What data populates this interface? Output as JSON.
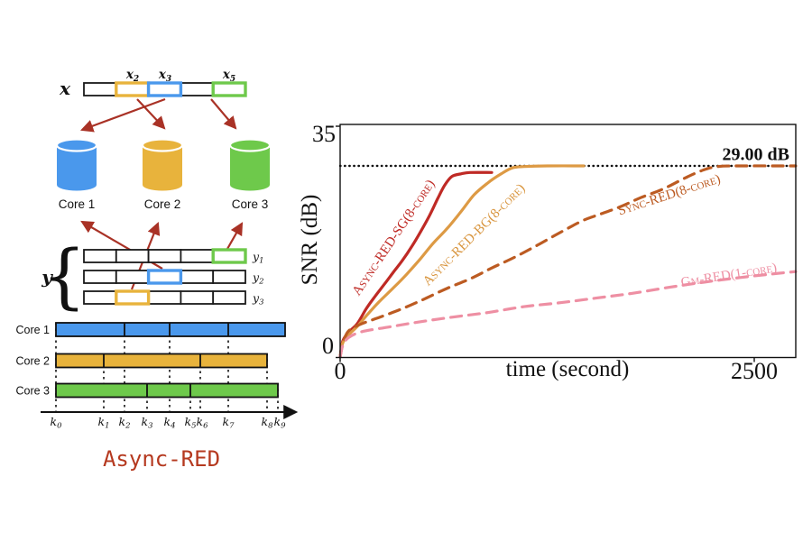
{
  "left": {
    "x_vector": {
      "label": "x",
      "cells": [
        {
          "base": "x",
          "sub": "2"
        },
        {
          "base": "x",
          "sub": "3"
        },
        {
          "base": "x",
          "sub": "5"
        }
      ]
    },
    "cores": [
      {
        "label": "Core 1",
        "color": "#4a98ec"
      },
      {
        "label": "Core 2",
        "color": "#e8b33c"
      },
      {
        "label": "Core 3",
        "color": "#6ec94b"
      }
    ],
    "y_vector": {
      "label": "y",
      "rows": [
        {
          "base": "y",
          "sub": "1"
        },
        {
          "base": "y",
          "sub": "2"
        },
        {
          "base": "y",
          "sub": "3"
        }
      ]
    },
    "timeline": {
      "rows": [
        "Core 1",
        "Core 2",
        "Core 3"
      ],
      "ticks": [
        {
          "base": "k",
          "sub": "0"
        },
        {
          "base": "k",
          "sub": "1"
        },
        {
          "base": "k",
          "sub": "2"
        },
        {
          "base": "k",
          "sub": "3"
        },
        {
          "base": "k",
          "sub": "4"
        },
        {
          "base": "k",
          "sub": "5"
        },
        {
          "base": "k",
          "sub": "6"
        },
        {
          "base": "k",
          "sub": "7"
        },
        {
          "base": "k",
          "sub": "8"
        },
        {
          "base": "k",
          "sub": "9"
        }
      ]
    },
    "caption": {
      "text": "Async-RED",
      "color": "#b5391f"
    },
    "arrow_color": "#a93226"
  },
  "chart": {
    "ylabel": "SNR (dB)",
    "xlabel": "time (second)",
    "ytick_top": "35",
    "ytick_bottom": "0",
    "xtick_left": "0",
    "xtick_right": "2500",
    "annotation": "29.00 dB"
  },
  "chart_data": {
    "type": "line",
    "title": "",
    "xlabel": "time (second)",
    "ylabel": "SNR (dB)",
    "xlim": [
      0,
      2750
    ],
    "ylim": [
      0,
      35.3
    ],
    "xticks": [
      0,
      2500
    ],
    "yticks": [
      0,
      35
    ],
    "grid": false,
    "legend_position": "inline-rotated-labels",
    "reference_line": {
      "text": "29.00 dB",
      "value": 29.0,
      "style": "dotted",
      "color": "#111111"
    },
    "series": [
      {
        "name": "Async-RED-SG(8-core)",
        "style": "solid",
        "color": "#bf2a25",
        "points": [
          [
            0,
            0.1
          ],
          [
            16,
            2.5
          ],
          [
            50,
            3.8
          ],
          [
            103,
            5.1
          ],
          [
            158,
            7.4
          ],
          [
            212,
            9.3
          ],
          [
            267,
            11.1
          ],
          [
            321,
            12.9
          ],
          [
            376,
            14.7
          ],
          [
            430,
            16.7
          ],
          [
            485,
            19.0
          ],
          [
            540,
            21.5
          ],
          [
            590,
            24.1
          ],
          [
            632,
            26.1
          ],
          [
            675,
            27.4
          ],
          [
            730,
            27.8
          ],
          [
            784,
            28.0
          ],
          [
            915,
            28.0
          ]
        ]
      },
      {
        "name": "Async-RED-BG(8-core)",
        "style": "solid",
        "color": "#dd9a44",
        "points": [
          [
            0,
            0.1
          ],
          [
            16,
            2.2
          ],
          [
            50,
            3.4
          ],
          [
            103,
            4.7
          ],
          [
            158,
            6.3
          ],
          [
            234,
            8.4
          ],
          [
            316,
            10.4
          ],
          [
            398,
            12.5
          ],
          [
            480,
            14.8
          ],
          [
            562,
            17.3
          ],
          [
            645,
            19.5
          ],
          [
            727,
            22.0
          ],
          [
            808,
            24.6
          ],
          [
            890,
            26.4
          ],
          [
            972,
            27.8
          ],
          [
            1040,
            28.7
          ],
          [
            1110,
            28.9
          ],
          [
            1250,
            29.0
          ],
          [
            1470,
            29.0
          ]
        ]
      },
      {
        "name": "Sync-RED(8-core)",
        "style": "dashed",
        "color": "#bc5b22",
        "points": [
          [
            0,
            0.1
          ],
          [
            16,
            2.0
          ],
          [
            50,
            4.0
          ],
          [
            130,
            5.1
          ],
          [
            240,
            6.1
          ],
          [
            376,
            7.4
          ],
          [
            512,
            8.9
          ],
          [
            648,
            10.5
          ],
          [
            784,
            11.9
          ],
          [
            920,
            13.6
          ],
          [
            1055,
            15.2
          ],
          [
            1191,
            17.0
          ],
          [
            1327,
            18.9
          ],
          [
            1463,
            20.7
          ],
          [
            1570,
            21.7
          ],
          [
            1690,
            22.8
          ],
          [
            1815,
            24.2
          ],
          [
            1950,
            25.5
          ],
          [
            2085,
            27.2
          ],
          [
            2195,
            28.4
          ],
          [
            2280,
            28.9
          ],
          [
            2400,
            29.0
          ],
          [
            2750,
            29.0
          ]
        ]
      },
      {
        "name": "Gm-RED(1-core)",
        "style": "dashed",
        "color": "#ee8fa3",
        "points": [
          [
            0,
            0.1
          ],
          [
            16,
            1.8
          ],
          [
            50,
            3.0
          ],
          [
            130,
            3.9
          ],
          [
            290,
            4.6
          ],
          [
            455,
            5.3
          ],
          [
            675,
            6.1
          ],
          [
            890,
            6.8
          ],
          [
            1110,
            7.7
          ],
          [
            1330,
            8.3
          ],
          [
            1545,
            9.0
          ],
          [
            1760,
            9.7
          ],
          [
            1980,
            10.6
          ],
          [
            2195,
            11.4
          ],
          [
            2415,
            12.1
          ],
          [
            2630,
            12.7
          ],
          [
            2750,
            13.0
          ]
        ]
      }
    ]
  }
}
